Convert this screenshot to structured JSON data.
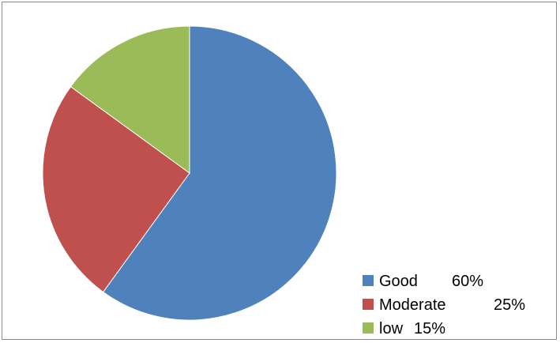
{
  "chart_data": {
    "type": "pie",
    "title": "",
    "legend_position": "bottom-right",
    "start_angle": "12 o'clock, clockwise",
    "slices": [
      {
        "label": "Good",
        "percent_label": "60%",
        "value": 60,
        "color": "#4f81bd"
      },
      {
        "label": "Moderate",
        "percent_label": "25%",
        "value": 25,
        "color": "#c0504d"
      },
      {
        "label": "low",
        "percent_label": "15%",
        "value": 15,
        "color": "#9bbb59"
      }
    ]
  }
}
